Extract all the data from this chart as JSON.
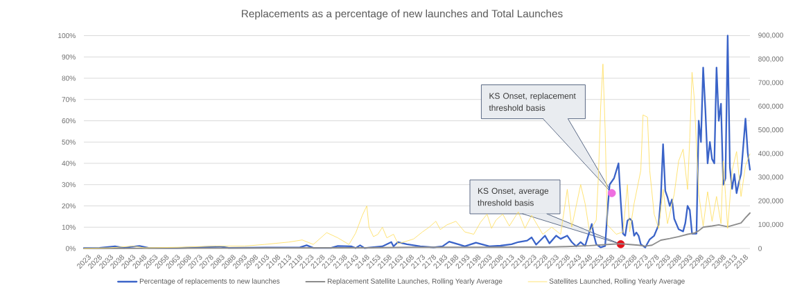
{
  "chart_data": {
    "type": "line",
    "title": "Replacements as a percentage of new launches and Total Launches",
    "series": [
      {
        "name": "Percentage of replacements to new launches",
        "color": "#3a63c8",
        "x": [
          2023,
          2030,
          2037,
          2041,
          2044,
          2048,
          2052,
          2065,
          2084,
          2088,
          2105,
          2120,
          2123,
          2126,
          2134,
          2137,
          2143,
          2145,
          2147,
          2149,
          2157,
          2161,
          2162,
          2164,
          2168,
          2174,
          2180,
          2184,
          2187,
          2191,
          2194,
          2199,
          2205,
          2210,
          2215,
          2218,
          2222,
          2224,
          2226,
          2230,
          2232,
          2235,
          2237,
          2240,
          2242,
          2244,
          2246,
          2248,
          2250,
          2251,
          2252,
          2253,
          2255,
          2257,
          2258,
          2259,
          2261,
          2263,
          2264,
          2265,
          2266,
          2267,
          2268,
          2269,
          2270,
          2271,
          2272,
          2273,
          2275,
          2277,
          2279,
          2281,
          2282,
          2283,
          2284,
          2285,
          2286,
          2287,
          2288,
          2290,
          2292,
          2293,
          2294,
          2295,
          2296,
          2298,
          2299,
          2300,
          2301,
          2302,
          2303,
          2304,
          2305,
          2306,
          2307,
          2308,
          2309,
          2310,
          2311,
          2312,
          2313,
          2314,
          2315,
          2316,
          2317,
          2318,
          2319,
          2320,
          2321,
          2322
        ],
        "values": [
          0.2,
          0.3,
          1,
          0.3,
          0.8,
          1.2,
          0.3,
          0.2,
          0.9,
          0.3,
          0.4,
          0.5,
          1.5,
          0.3,
          0.3,
          1.2,
          1,
          0.2,
          1.5,
          0.2,
          1,
          3,
          1,
          3,
          2,
          1,
          0.5,
          1,
          3.2,
          2,
          1,
          2.7,
          1,
          1.3,
          2,
          3,
          3.7,
          5.2,
          1.8,
          6,
          2.4,
          6,
          4.5,
          6,
          3,
          1,
          3,
          1.2,
          8,
          11.5,
          6,
          2,
          0.5,
          1.2,
          17,
          30,
          33,
          40,
          22,
          7,
          6,
          13,
          14,
          13,
          6,
          7.5,
          6,
          2,
          0.5,
          4.3,
          6,
          11,
          24,
          49,
          27,
          24,
          20,
          23,
          14,
          9,
          8,
          12,
          20,
          18,
          7,
          7,
          60,
          50,
          85,
          65,
          40,
          50,
          42,
          40,
          85,
          60,
          68,
          30,
          33,
          100,
          38,
          28,
          35,
          26,
          31,
          35,
          48,
          61,
          45,
          37
        ]
      },
      {
        "name": "Replacement Satellite Launches, Rolling Yearly Average",
        "color": "#8c8c8c",
        "axis": "y2",
        "x": [
          2023,
          2100,
          2150,
          2170,
          2200,
          2230,
          2240,
          2250,
          2258,
          2264,
          2268,
          2272,
          2275,
          2278,
          2282,
          2286,
          2290,
          2294,
          2297,
          2299,
          2301,
          2305,
          2308,
          2312,
          2315,
          2318,
          2320,
          2322
        ],
        "values": [
          0,
          2000,
          3000,
          5000,
          5000,
          6000,
          8000,
          12000,
          17000,
          20000,
          17000,
          14000,
          10000,
          14000,
          35000,
          42000,
          50000,
          60000,
          65000,
          75000,
          90000,
          95000,
          100000,
          92000,
          100000,
          108000,
          130000,
          150000
        ]
      },
      {
        "name": "Satellites Launched, Rolling Yearly Average",
        "color": "#ffe066",
        "axis": "y2",
        "x": [
          2023,
          2035,
          2045,
          2050,
          2065,
          2082,
          2095,
          2104,
          2115,
          2121,
          2126,
          2132,
          2137,
          2142,
          2145,
          2148,
          2150,
          2151,
          2153,
          2155,
          2157,
          2159,
          2162,
          2164,
          2171,
          2175,
          2178,
          2181,
          2183,
          2186,
          2190,
          2194,
          2198,
          2201,
          2204,
          2206,
          2208,
          2211,
          2214,
          2218,
          2221,
          2224,
          2229,
          2233,
          2237,
          2240,
          2242,
          2244,
          2246,
          2248,
          2250,
          2253,
          2254,
          2255,
          2256,
          2257,
          2258,
          2260,
          2262,
          2265,
          2267,
          2268,
          2270,
          2273,
          2274,
          2276,
          2277,
          2279,
          2281,
          2283,
          2285,
          2288,
          2290,
          2292,
          2294,
          2295,
          2296,
          2297,
          2299,
          2301,
          2303,
          2305,
          2307,
          2309,
          2310,
          2311,
          2312,
          2314,
          2316,
          2318,
          2320,
          2322
        ],
        "values": [
          0,
          3000,
          10000,
          3000,
          5000,
          10000,
          10000,
          17000,
          27000,
          36000,
          17000,
          67000,
          45000,
          17000,
          65000,
          140000,
          180000,
          90000,
          50000,
          60000,
          90000,
          45000,
          60000,
          20000,
          40000,
          70000,
          90000,
          115000,
          80000,
          100000,
          115000,
          70000,
          60000,
          110000,
          145000,
          85000,
          120000,
          145000,
          95000,
          155000,
          85000,
          140000,
          60000,
          90000,
          60000,
          250000,
          90000,
          180000,
          270000,
          190000,
          70000,
          120000,
          310000,
          600000,
          780000,
          500000,
          100000,
          80000,
          60000,
          70000,
          270000,
          70000,
          190000,
          330000,
          565000,
          555000,
          330000,
          145000,
          85000,
          250000,
          105000,
          230000,
          370000,
          420000,
          250000,
          470000,
          745000,
          635000,
          230000,
          95000,
          240000,
          115000,
          220000,
          105000,
          370000,
          230000,
          85000,
          330000,
          410000,
          220000,
          350000,
          400000
        ]
      },
      {
        "type": "scatter",
        "color": "#ee6fe0",
        "marker": "circle",
        "x": [
          2260
        ],
        "values": [
          26
        ]
      },
      {
        "type": "scatter",
        "color": "#e3131b",
        "marker": "circle",
        "x": [
          2264
        ],
        "values": [
          2
        ]
      }
    ],
    "xlim": [
      2023,
      2322
    ],
    "xticks": [
      2023,
      2028,
      2033,
      2038,
      2043,
      2048,
      2053,
      2058,
      2063,
      2068,
      2073,
      2078,
      2083,
      2088,
      2093,
      2098,
      2103,
      2108,
      2113,
      2118,
      2123,
      2128,
      2133,
      2138,
      2143,
      2148,
      2153,
      2158,
      2163,
      2168,
      2173,
      2178,
      2183,
      2188,
      2193,
      2198,
      2203,
      2208,
      2213,
      2218,
      2223,
      2228,
      2233,
      2238,
      2243,
      2248,
      2253,
      2258,
      2263,
      2268,
      2273,
      2278,
      2283,
      2288,
      2293,
      2298,
      2303,
      2308,
      2313,
      2318
    ],
    "ylim": [
      0,
      100
    ],
    "yticks": [
      {
        "value": 0,
        "label": "0%"
      },
      {
        "value": 10,
        "label": "10%"
      },
      {
        "value": 20,
        "label": "20%"
      },
      {
        "value": 30,
        "label": "30%"
      },
      {
        "value": 40,
        "label": "40%"
      },
      {
        "value": 50,
        "label": "50%"
      },
      {
        "value": 60,
        "label": "60%"
      },
      {
        "value": 70,
        "label": "70%"
      },
      {
        "value": 80,
        "label": "80%"
      },
      {
        "value": 90,
        "label": "90%"
      },
      {
        "value": 100,
        "label": "100%"
      }
    ],
    "y2lim": [
      0,
      900000
    ],
    "y2ticks": [
      {
        "value": 0,
        "label": "0"
      },
      {
        "value": 100000,
        "label": "100,000"
      },
      {
        "value": 200000,
        "label": "200,000"
      },
      {
        "value": 300000,
        "label": "300,000"
      },
      {
        "value": 400000,
        "label": "400,000"
      },
      {
        "value": 500000,
        "label": "500,000"
      },
      {
        "value": 600000,
        "label": "600,000"
      },
      {
        "value": 700000,
        "label": "700,000"
      },
      {
        "value": 800000,
        "label": "800,000"
      },
      {
        "value": 900000,
        "label": "900,000"
      }
    ],
    "grid": "y",
    "legend": "bottom",
    "annotations": [
      {
        "text": "KS Onset, replacement threshold basis",
        "x": 2260,
        "y": 26
      },
      {
        "text": "KS Onset, average threshold basis",
        "x": 2264,
        "y": 2
      }
    ]
  }
}
